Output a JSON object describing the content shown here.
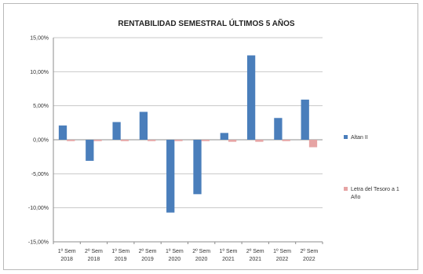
{
  "chart_data": {
    "type": "bar",
    "title": "RENTABILIDAD SEMESTRAL ÚLTIMOS 5 AÑOS",
    "xlabel": "",
    "ylabel": "",
    "ylim": [
      -15,
      15
    ],
    "yticks": [
      15,
      10,
      5,
      0,
      -5,
      -10,
      -15
    ],
    "ytick_labels": [
      "15,00%",
      "10,00%",
      "5,00%",
      "0,00%",
      "-5,00%",
      "-10,00%",
      "-15,00%"
    ],
    "grid": true,
    "legend_position": "right",
    "categories": [
      [
        "1º Sem",
        "2018"
      ],
      [
        "2º Sem",
        "2018"
      ],
      [
        "1º Sem",
        "2019"
      ],
      [
        "2º Sem",
        "2019"
      ],
      [
        "1º Sem",
        "2020"
      ],
      [
        "2º Sem",
        "2020"
      ],
      [
        "1º Sem",
        "2021"
      ],
      [
        "2º Sem",
        "2021"
      ],
      [
        "1º Sem",
        "2022"
      ],
      [
        "2º Sem",
        "2022"
      ]
    ],
    "series": [
      {
        "name": "Altan II",
        "color": "#4a7ebb",
        "values": [
          2.1,
          -3.1,
          2.6,
          4.1,
          -10.7,
          -8.0,
          1.0,
          12.4,
          3.2,
          5.9
        ]
      },
      {
        "name": "Letra del Tesoro a 1 Año",
        "color": "#e6a4a4",
        "values": [
          -0.2,
          -0.2,
          -0.2,
          -0.2,
          -0.2,
          -0.2,
          -0.3,
          -0.3,
          -0.2,
          -1.1
        ]
      }
    ]
  }
}
